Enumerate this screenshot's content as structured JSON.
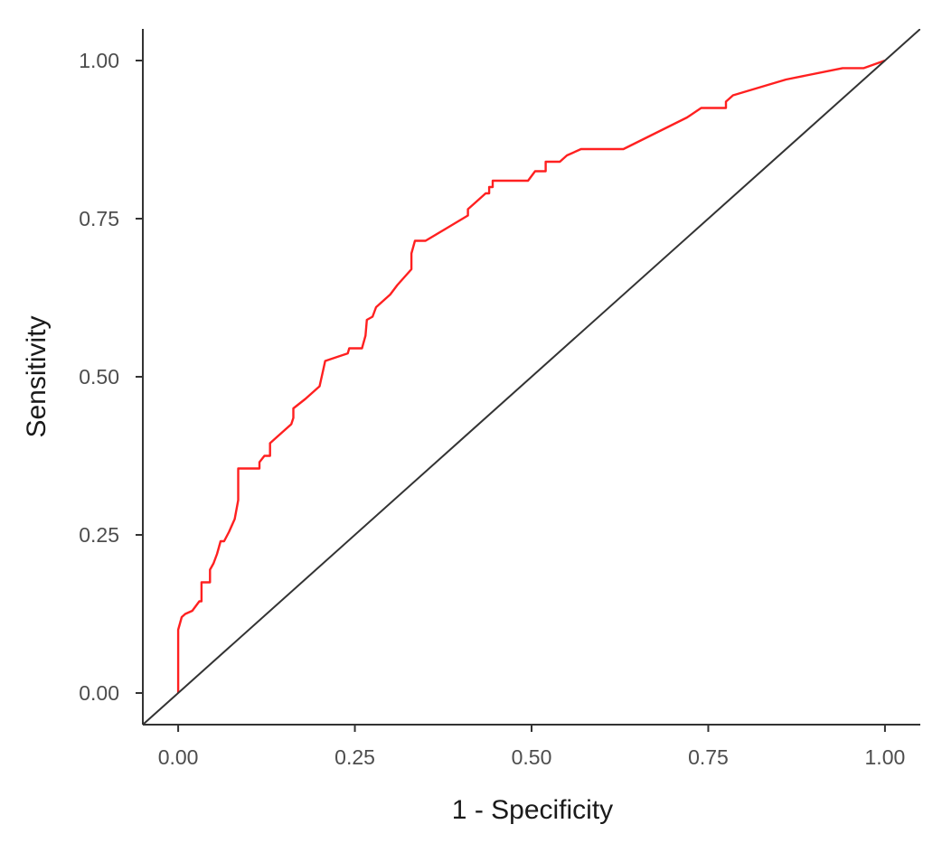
{
  "chart_data": {
    "type": "line",
    "xlabel": "1 - Specificity",
    "ylabel": "Sensitivity",
    "xlim": [
      -0.05,
      1.05
    ],
    "ylim": [
      -0.05,
      1.05
    ],
    "x_ticks": [
      0,
      0.25,
      0.5,
      0.75,
      1.0
    ],
    "y_ticks": [
      0,
      0.25,
      0.5,
      0.75,
      1.0
    ],
    "x_tick_labels": [
      "0.00",
      "0.25",
      "0.50",
      "0.75",
      "1.00"
    ],
    "y_tick_labels": [
      "0.00",
      "0.25",
      "0.50",
      "0.75",
      "1.00"
    ],
    "grid": false,
    "series": [
      {
        "color": "#ff2020",
        "points": [
          [
            0,
            0
          ],
          [
            0,
            0.1
          ],
          [
            0.005,
            0.12
          ],
          [
            0.01,
            0.125
          ],
          [
            0.02,
            0.13
          ],
          [
            0.03,
            0.145
          ],
          [
            0.033,
            0.145
          ],
          [
            0.033,
            0.175
          ],
          [
            0.045,
            0.175
          ],
          [
            0.045,
            0.195
          ],
          [
            0.05,
            0.205
          ],
          [
            0.055,
            0.22
          ],
          [
            0.06,
            0.24
          ],
          [
            0.065,
            0.24
          ],
          [
            0.072,
            0.255
          ],
          [
            0.08,
            0.275
          ],
          [
            0.085,
            0.305
          ],
          [
            0.085,
            0.355
          ],
          [
            0.115,
            0.355
          ],
          [
            0.115,
            0.365
          ],
          [
            0.122,
            0.375
          ],
          [
            0.13,
            0.375
          ],
          [
            0.13,
            0.395
          ],
          [
            0.14,
            0.405
          ],
          [
            0.16,
            0.425
          ],
          [
            0.163,
            0.435
          ],
          [
            0.163,
            0.45
          ],
          [
            0.18,
            0.465
          ],
          [
            0.2,
            0.485
          ],
          [
            0.205,
            0.51
          ],
          [
            0.208,
            0.525
          ],
          [
            0.24,
            0.537
          ],
          [
            0.242,
            0.545
          ],
          [
            0.25,
            0.545
          ],
          [
            0.26,
            0.545
          ],
          [
            0.265,
            0.565
          ],
          [
            0.267,
            0.59
          ],
          [
            0.275,
            0.595
          ],
          [
            0.28,
            0.61
          ],
          [
            0.3,
            0.63
          ],
          [
            0.31,
            0.645
          ],
          [
            0.33,
            0.67
          ],
          [
            0.33,
            0.695
          ],
          [
            0.335,
            0.715
          ],
          [
            0.35,
            0.715
          ],
          [
            0.38,
            0.735
          ],
          [
            0.41,
            0.755
          ],
          [
            0.41,
            0.765
          ],
          [
            0.42,
            0.775
          ],
          [
            0.435,
            0.79
          ],
          [
            0.44,
            0.79
          ],
          [
            0.44,
            0.8
          ],
          [
            0.445,
            0.8
          ],
          [
            0.445,
            0.81
          ],
          [
            0.495,
            0.81
          ],
          [
            0.505,
            0.825
          ],
          [
            0.52,
            0.825
          ],
          [
            0.52,
            0.84
          ],
          [
            0.54,
            0.84
          ],
          [
            0.55,
            0.85
          ],
          [
            0.57,
            0.86
          ],
          [
            0.63,
            0.86
          ],
          [
            0.675,
            0.885
          ],
          [
            0.72,
            0.91
          ],
          [
            0.74,
            0.925
          ],
          [
            0.775,
            0.925
          ],
          [
            0.775,
            0.935
          ],
          [
            0.785,
            0.945
          ],
          [
            0.8,
            0.95
          ],
          [
            0.86,
            0.97
          ],
          [
            0.94,
            0.988
          ],
          [
            0.97,
            0.988
          ],
          [
            1.0,
            1.0
          ]
        ]
      },
      {
        "color": "#333333",
        "points": [
          [
            -0.05,
            -0.05
          ],
          [
            1.05,
            1.05
          ]
        ]
      }
    ]
  }
}
